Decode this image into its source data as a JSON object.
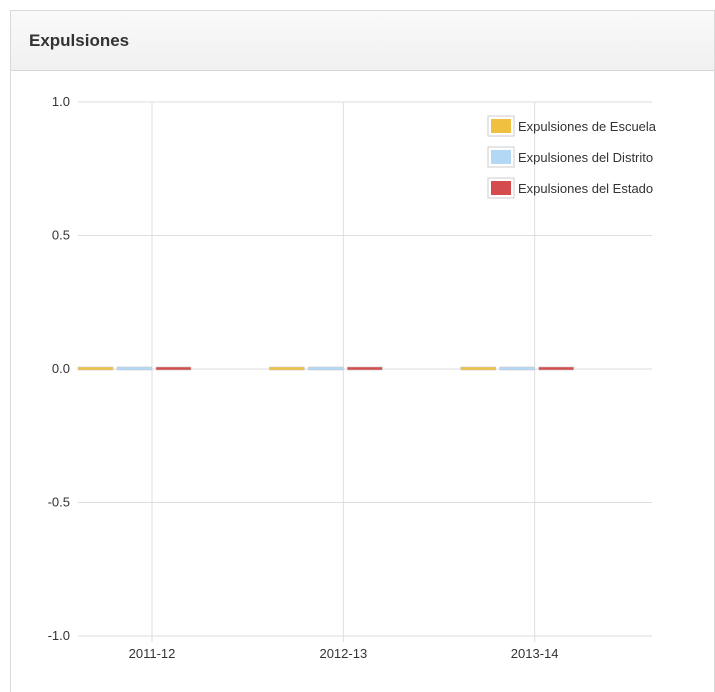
{
  "panel": {
    "title": "Expulsiones"
  },
  "chart_data": {
    "type": "bar",
    "categories": [
      "2011-12",
      "2012-13",
      "2013-14"
    ],
    "series": [
      {
        "name": "Expulsiones de Escuela",
        "values": [
          0,
          0,
          0
        ],
        "color": "#f0c040"
      },
      {
        "name": "Expulsiones del Distrito",
        "values": [
          0,
          0,
          0
        ],
        "color": "#b3d8f5"
      },
      {
        "name": "Expulsiones del Estado",
        "values": [
          0,
          0,
          0
        ],
        "color": "#d44c4c"
      }
    ],
    "ylim": [
      -1.0,
      1.0
    ],
    "yticks": [
      "1.0",
      "0.5",
      "0.0",
      "-0.5",
      "-1.0"
    ],
    "grid": true,
    "legend_position": "top-right"
  }
}
